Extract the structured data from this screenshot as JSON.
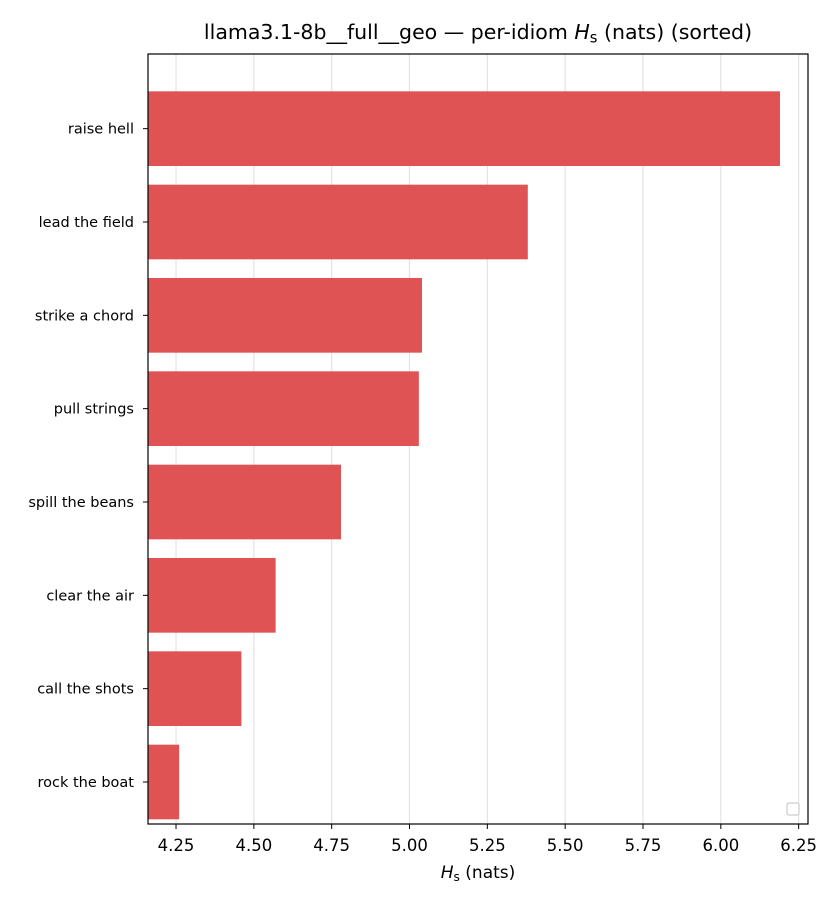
{
  "chart_data": {
    "type": "bar",
    "orientation": "horizontal",
    "title": {
      "prefix": "llama3.1-8b__full__geo — per-idiom ",
      "symbol": "H",
      "subscript": "s",
      "suffix": " (nats) (sorted)"
    },
    "xlabel": {
      "symbol": "H",
      "subscript": "s",
      "suffix": " (nats)"
    },
    "ylabel": "",
    "categories": [
      "raise hell",
      "lead the field",
      "strike a chord",
      "pull strings",
      "spill the beans",
      "clear the air",
      "call the shots",
      "rock the boat"
    ],
    "values": [
      6.19,
      5.38,
      5.04,
      5.03,
      4.78,
      4.57,
      4.46,
      4.26
    ],
    "xlim": [
      4.16,
      6.28
    ],
    "xticks": [
      "4.25",
      "4.50",
      "4.75",
      "5.00",
      "5.25",
      "5.50",
      "5.75",
      "6.00",
      "6.25"
    ],
    "bar_color": "#e05355",
    "grid": "vertical",
    "legend": "bottom-right (empty)"
  }
}
